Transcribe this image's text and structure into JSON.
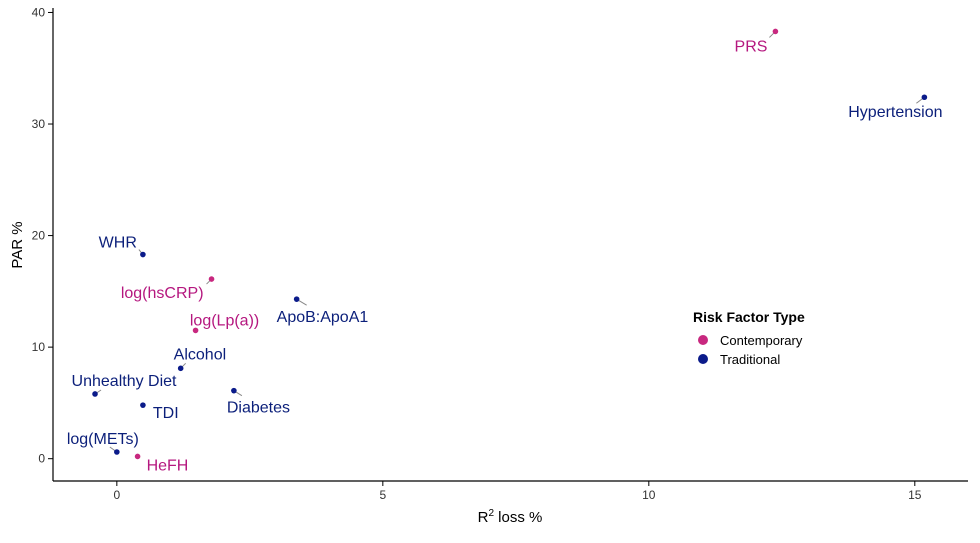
{
  "chart_data": {
    "type": "scatter",
    "title": "",
    "xlabel": "R² loss %",
    "xlabel_base": "R",
    "xlabel_sup": "2",
    "xlabel_rest": " loss %",
    "ylabel": "PAR %",
    "xlim": [
      -1.2,
      16
    ],
    "ylim": [
      -2,
      40.4
    ],
    "xticks": [
      0,
      5,
      10,
      15
    ],
    "yticks": [
      0,
      10,
      20,
      30,
      40
    ],
    "grid": false,
    "legend": {
      "title": "Risk Factor Type",
      "placement": "right-center",
      "entries": [
        {
          "name": "Contemporary",
          "color": "#C8287F"
        },
        {
          "name": "Traditional",
          "color": "#0B1B8A"
        }
      ]
    },
    "points": [
      {
        "label": "PRS",
        "x": 12.38,
        "y": 38.3,
        "type": "Contemporary"
      },
      {
        "label": "Hypertension",
        "x": 15.18,
        "y": 32.4,
        "type": "Traditional"
      },
      {
        "label": "WHR",
        "x": 0.49,
        "y": 18.3,
        "type": "Traditional"
      },
      {
        "label": "log(hsCRP)",
        "x": 1.78,
        "y": 16.1,
        "type": "Contemporary"
      },
      {
        "label": "ApoB:ApoA1",
        "x": 3.38,
        "y": 14.3,
        "type": "Traditional"
      },
      {
        "label": "log(Lp(a))",
        "x": 1.48,
        "y": 11.5,
        "type": "Contemporary"
      },
      {
        "label": "Alcohol",
        "x": 1.2,
        "y": 8.1,
        "type": "Traditional"
      },
      {
        "label": "Unhealthy Diet",
        "x": -0.41,
        "y": 5.8,
        "type": "Traditional"
      },
      {
        "label": "TDI",
        "x": 0.49,
        "y": 4.8,
        "type": "Traditional"
      },
      {
        "label": "Diabetes",
        "x": 2.2,
        "y": 6.1,
        "type": "Traditional"
      },
      {
        "label": "log(METs)",
        "x": 0.0,
        "y": 0.6,
        "type": "Traditional"
      },
      {
        "label": "HeFH",
        "x": 0.39,
        "y": 0.2,
        "type": "Contemporary"
      }
    ]
  }
}
